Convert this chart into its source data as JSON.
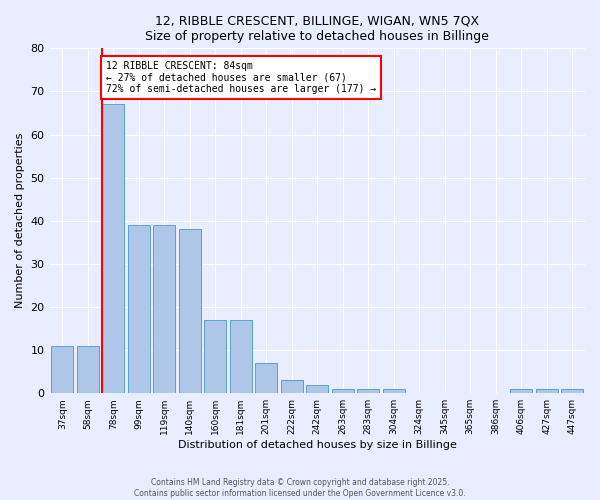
{
  "title": "12, RIBBLE CRESCENT, BILLINGE, WIGAN, WN5 7QX",
  "subtitle": "Size of property relative to detached houses in Billinge",
  "xlabel": "Distribution of detached houses by size in Billinge",
  "ylabel": "Number of detached properties",
  "categories": [
    "37sqm",
    "58sqm",
    "78sqm",
    "99sqm",
    "119sqm",
    "140sqm",
    "160sqm",
    "181sqm",
    "201sqm",
    "222sqm",
    "242sqm",
    "263sqm",
    "283sqm",
    "304sqm",
    "324sqm",
    "345sqm",
    "365sqm",
    "386sqm",
    "406sqm",
    "427sqm",
    "447sqm"
  ],
  "values": [
    11,
    11,
    67,
    39,
    39,
    38,
    17,
    17,
    7,
    3,
    2,
    1,
    1,
    1,
    0,
    0,
    0,
    0,
    1,
    1,
    1
  ],
  "bar_color": "#aec6e8",
  "bar_edge_color": "#5a9fd4",
  "marker_index": 2,
  "marker_color": "red",
  "annotation_title": "12 RIBBLE CRESCENT: 84sqm",
  "annotation_line1": "← 27% of detached houses are smaller (67)",
  "annotation_line2": "72% of semi-detached houses are larger (177) →",
  "annotation_box_color": "white",
  "annotation_box_edge": "red",
  "background_color": "#e8eeff",
  "ylim": [
    0,
    80
  ],
  "yticks": [
    0,
    10,
    20,
    30,
    40,
    50,
    60,
    70,
    80
  ],
  "footer1": "Contains HM Land Registry data © Crown copyright and database right 2025.",
  "footer2": "Contains public sector information licensed under the Open Government Licence v3.0."
}
